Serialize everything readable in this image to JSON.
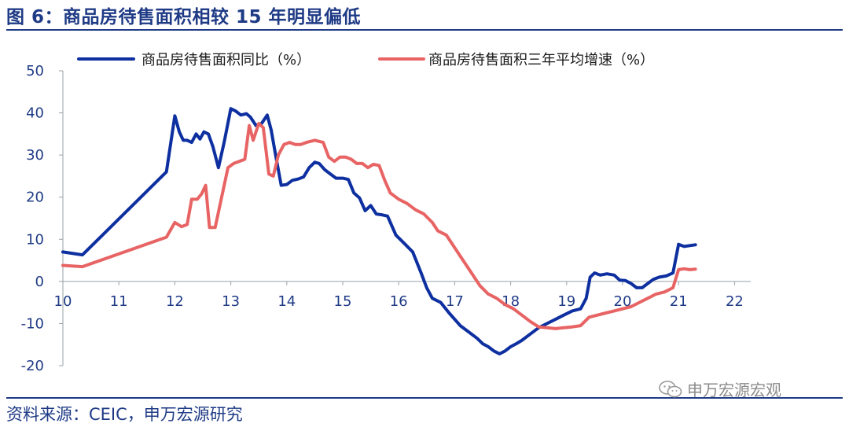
{
  "header": {
    "title": "图 6：商品房待售面积相较 15 年明显偏低"
  },
  "footer": {
    "source": "资料来源：CEIC，申万宏源研究"
  },
  "watermark": {
    "text": "申万宏源宏观",
    "icon": "wechat-icon"
  },
  "colors": {
    "accent": "#1f3b86",
    "series1": "#0d2fa0",
    "series2": "#e86464"
  },
  "chart_data": {
    "type": "line",
    "title": "图 6：商品房待售面积相较 15 年明显偏低",
    "xlabel": "",
    "ylabel": "",
    "xlim": [
      2010,
      2022.3
    ],
    "ylim": [
      -20,
      50
    ],
    "yticks": [
      50,
      40,
      30,
      20,
      10,
      0,
      -10,
      -20
    ],
    "xticks": [
      {
        "label": "10",
        "value": 2010
      },
      {
        "label": "11",
        "value": 2011
      },
      {
        "label": "12",
        "value": 2012
      },
      {
        "label": "13",
        "value": 2013
      },
      {
        "label": "14",
        "value": 2014
      },
      {
        "label": "15",
        "value": 2015
      },
      {
        "label": "16",
        "value": 2016
      },
      {
        "label": "17",
        "value": 2017
      },
      {
        "label": "18",
        "value": 2018
      },
      {
        "label": "19",
        "value": 2019
      },
      {
        "label": "20",
        "value": 2020
      },
      {
        "label": "21",
        "value": 2021
      },
      {
        "label": "22",
        "value": 2022
      }
    ],
    "grid": false,
    "legend_position": "top",
    "series": [
      {
        "name": "商品房待售面积同比（%）",
        "color": "#0d2fa0",
        "points": [
          [
            2010.0,
            7.0
          ],
          [
            2010.35,
            6.3
          ],
          [
            2011.85,
            26.0
          ],
          [
            2012.0,
            39.3
          ],
          [
            2012.08,
            35.5
          ],
          [
            2012.15,
            33.5
          ],
          [
            2012.22,
            33.5
          ],
          [
            2012.3,
            33.0
          ],
          [
            2012.38,
            35.0
          ],
          [
            2012.45,
            33.8
          ],
          [
            2012.52,
            35.5
          ],
          [
            2012.6,
            35.0
          ],
          [
            2012.68,
            32.0
          ],
          [
            2012.78,
            27.0
          ],
          [
            2012.88,
            33.0
          ],
          [
            2013.0,
            41.0
          ],
          [
            2013.08,
            40.5
          ],
          [
            2013.18,
            39.5
          ],
          [
            2013.28,
            39.8
          ],
          [
            2013.35,
            39.0
          ],
          [
            2013.45,
            37.0
          ],
          [
            2013.55,
            37.5
          ],
          [
            2013.65,
            39.5
          ],
          [
            2013.72,
            36.0
          ],
          [
            2013.8,
            30.0
          ],
          [
            2013.9,
            22.8
          ],
          [
            2014.0,
            23.0
          ],
          [
            2014.1,
            24.0
          ],
          [
            2014.2,
            24.3
          ],
          [
            2014.3,
            24.8
          ],
          [
            2014.4,
            27.0
          ],
          [
            2014.5,
            28.3
          ],
          [
            2014.58,
            28.0
          ],
          [
            2014.68,
            26.5
          ],
          [
            2014.78,
            25.5
          ],
          [
            2014.88,
            24.5
          ],
          [
            2015.0,
            24.5
          ],
          [
            2015.1,
            24.2
          ],
          [
            2015.2,
            21.0
          ],
          [
            2015.3,
            19.8
          ],
          [
            2015.4,
            16.8
          ],
          [
            2015.5,
            18.0
          ],
          [
            2015.6,
            16.0
          ],
          [
            2015.7,
            15.8
          ],
          [
            2015.8,
            15.5
          ],
          [
            2015.95,
            11.0
          ],
          [
            2016.1,
            9.0
          ],
          [
            2016.25,
            7.0
          ],
          [
            2016.4,
            2.0
          ],
          [
            2016.5,
            -1.5
          ],
          [
            2016.6,
            -4.0
          ],
          [
            2016.75,
            -5.0
          ],
          [
            2016.9,
            -7.5
          ],
          [
            2017.1,
            -10.5
          ],
          [
            2017.25,
            -12.0
          ],
          [
            2017.4,
            -13.5
          ],
          [
            2017.5,
            -14.8
          ],
          [
            2017.6,
            -15.5
          ],
          [
            2017.7,
            -16.5
          ],
          [
            2017.8,
            -17.2
          ],
          [
            2017.9,
            -16.5
          ],
          [
            2018.0,
            -15.5
          ],
          [
            2018.1,
            -14.8
          ],
          [
            2018.2,
            -14.0
          ],
          [
            2018.35,
            -12.5
          ],
          [
            2018.5,
            -11.0
          ],
          [
            2018.65,
            -10.0
          ],
          [
            2018.8,
            -9.0
          ],
          [
            2018.95,
            -8.0
          ],
          [
            2019.1,
            -7.0
          ],
          [
            2019.25,
            -6.5
          ],
          [
            2019.35,
            -4.0
          ],
          [
            2019.42,
            1.0
          ],
          [
            2019.5,
            2.0
          ],
          [
            2019.6,
            1.5
          ],
          [
            2019.72,
            1.8
          ],
          [
            2019.85,
            1.5
          ],
          [
            2019.95,
            0.3
          ],
          [
            2020.05,
            0.2
          ],
          [
            2020.15,
            -0.5
          ],
          [
            2020.25,
            -1.5
          ],
          [
            2020.35,
            -1.5
          ],
          [
            2020.45,
            -0.5
          ],
          [
            2020.55,
            0.5
          ],
          [
            2020.65,
            1.0
          ],
          [
            2020.78,
            1.3
          ],
          [
            2020.9,
            2.0
          ],
          [
            2021.0,
            8.8
          ],
          [
            2021.1,
            8.3
          ],
          [
            2021.2,
            8.5
          ],
          [
            2021.3,
            8.7
          ]
        ]
      },
      {
        "name": "商品房待售面积三年平均增速（%）",
        "color": "#e86464",
        "points": [
          [
            2010.0,
            3.8
          ],
          [
            2010.35,
            3.5
          ],
          [
            2011.85,
            10.5
          ],
          [
            2012.0,
            14.0
          ],
          [
            2012.12,
            13.0
          ],
          [
            2012.22,
            13.5
          ],
          [
            2012.3,
            19.5
          ],
          [
            2012.4,
            19.5
          ],
          [
            2012.48,
            20.8
          ],
          [
            2012.55,
            22.8
          ],
          [
            2012.62,
            12.8
          ],
          [
            2012.72,
            12.8
          ],
          [
            2012.82,
            19.0
          ],
          [
            2012.95,
            27.0
          ],
          [
            2013.05,
            28.0
          ],
          [
            2013.15,
            28.5
          ],
          [
            2013.25,
            29.0
          ],
          [
            2013.33,
            37.0
          ],
          [
            2013.4,
            33.5
          ],
          [
            2013.5,
            37.5
          ],
          [
            2013.58,
            36.5
          ],
          [
            2013.68,
            25.5
          ],
          [
            2013.76,
            25.0
          ],
          [
            2013.85,
            30.0
          ],
          [
            2013.95,
            32.5
          ],
          [
            2014.05,
            33.0
          ],
          [
            2014.15,
            32.5
          ],
          [
            2014.25,
            32.5
          ],
          [
            2014.35,
            33.0
          ],
          [
            2014.5,
            33.5
          ],
          [
            2014.65,
            33.0
          ],
          [
            2014.75,
            29.5
          ],
          [
            2014.85,
            28.5
          ],
          [
            2014.95,
            29.5
          ],
          [
            2015.05,
            29.5
          ],
          [
            2015.15,
            29.0
          ],
          [
            2015.25,
            28.0
          ],
          [
            2015.35,
            28.0
          ],
          [
            2015.45,
            27.0
          ],
          [
            2015.55,
            27.8
          ],
          [
            2015.65,
            27.5
          ],
          [
            2015.75,
            24.0
          ],
          [
            2015.85,
            21.0
          ],
          [
            2016.0,
            19.5
          ],
          [
            2016.15,
            18.5
          ],
          [
            2016.3,
            17.0
          ],
          [
            2016.45,
            16.0
          ],
          [
            2016.6,
            14.0
          ],
          [
            2016.7,
            12.0
          ],
          [
            2016.85,
            11.0
          ],
          [
            2017.0,
            8.0
          ],
          [
            2017.15,
            5.0
          ],
          [
            2017.3,
            2.0
          ],
          [
            2017.45,
            -1.0
          ],
          [
            2017.6,
            -3.0
          ],
          [
            2017.75,
            -4.0
          ],
          [
            2017.9,
            -5.5
          ],
          [
            2018.05,
            -6.5
          ],
          [
            2018.2,
            -8.0
          ],
          [
            2018.35,
            -9.5
          ],
          [
            2018.5,
            -10.8
          ],
          [
            2018.65,
            -11.0
          ],
          [
            2018.8,
            -11.2
          ],
          [
            2018.95,
            -11.0
          ],
          [
            2019.1,
            -10.8
          ],
          [
            2019.25,
            -10.5
          ],
          [
            2019.4,
            -8.5
          ],
          [
            2019.55,
            -8.0
          ],
          [
            2019.7,
            -7.5
          ],
          [
            2019.85,
            -7.0
          ],
          [
            2020.0,
            -6.5
          ],
          [
            2020.15,
            -6.0
          ],
          [
            2020.3,
            -5.0
          ],
          [
            2020.45,
            -4.0
          ],
          [
            2020.6,
            -3.0
          ],
          [
            2020.75,
            -2.5
          ],
          [
            2020.9,
            -1.5
          ],
          [
            2021.0,
            2.8
          ],
          [
            2021.1,
            3.0
          ],
          [
            2021.2,
            2.8
          ],
          [
            2021.3,
            2.9
          ]
        ]
      }
    ]
  }
}
